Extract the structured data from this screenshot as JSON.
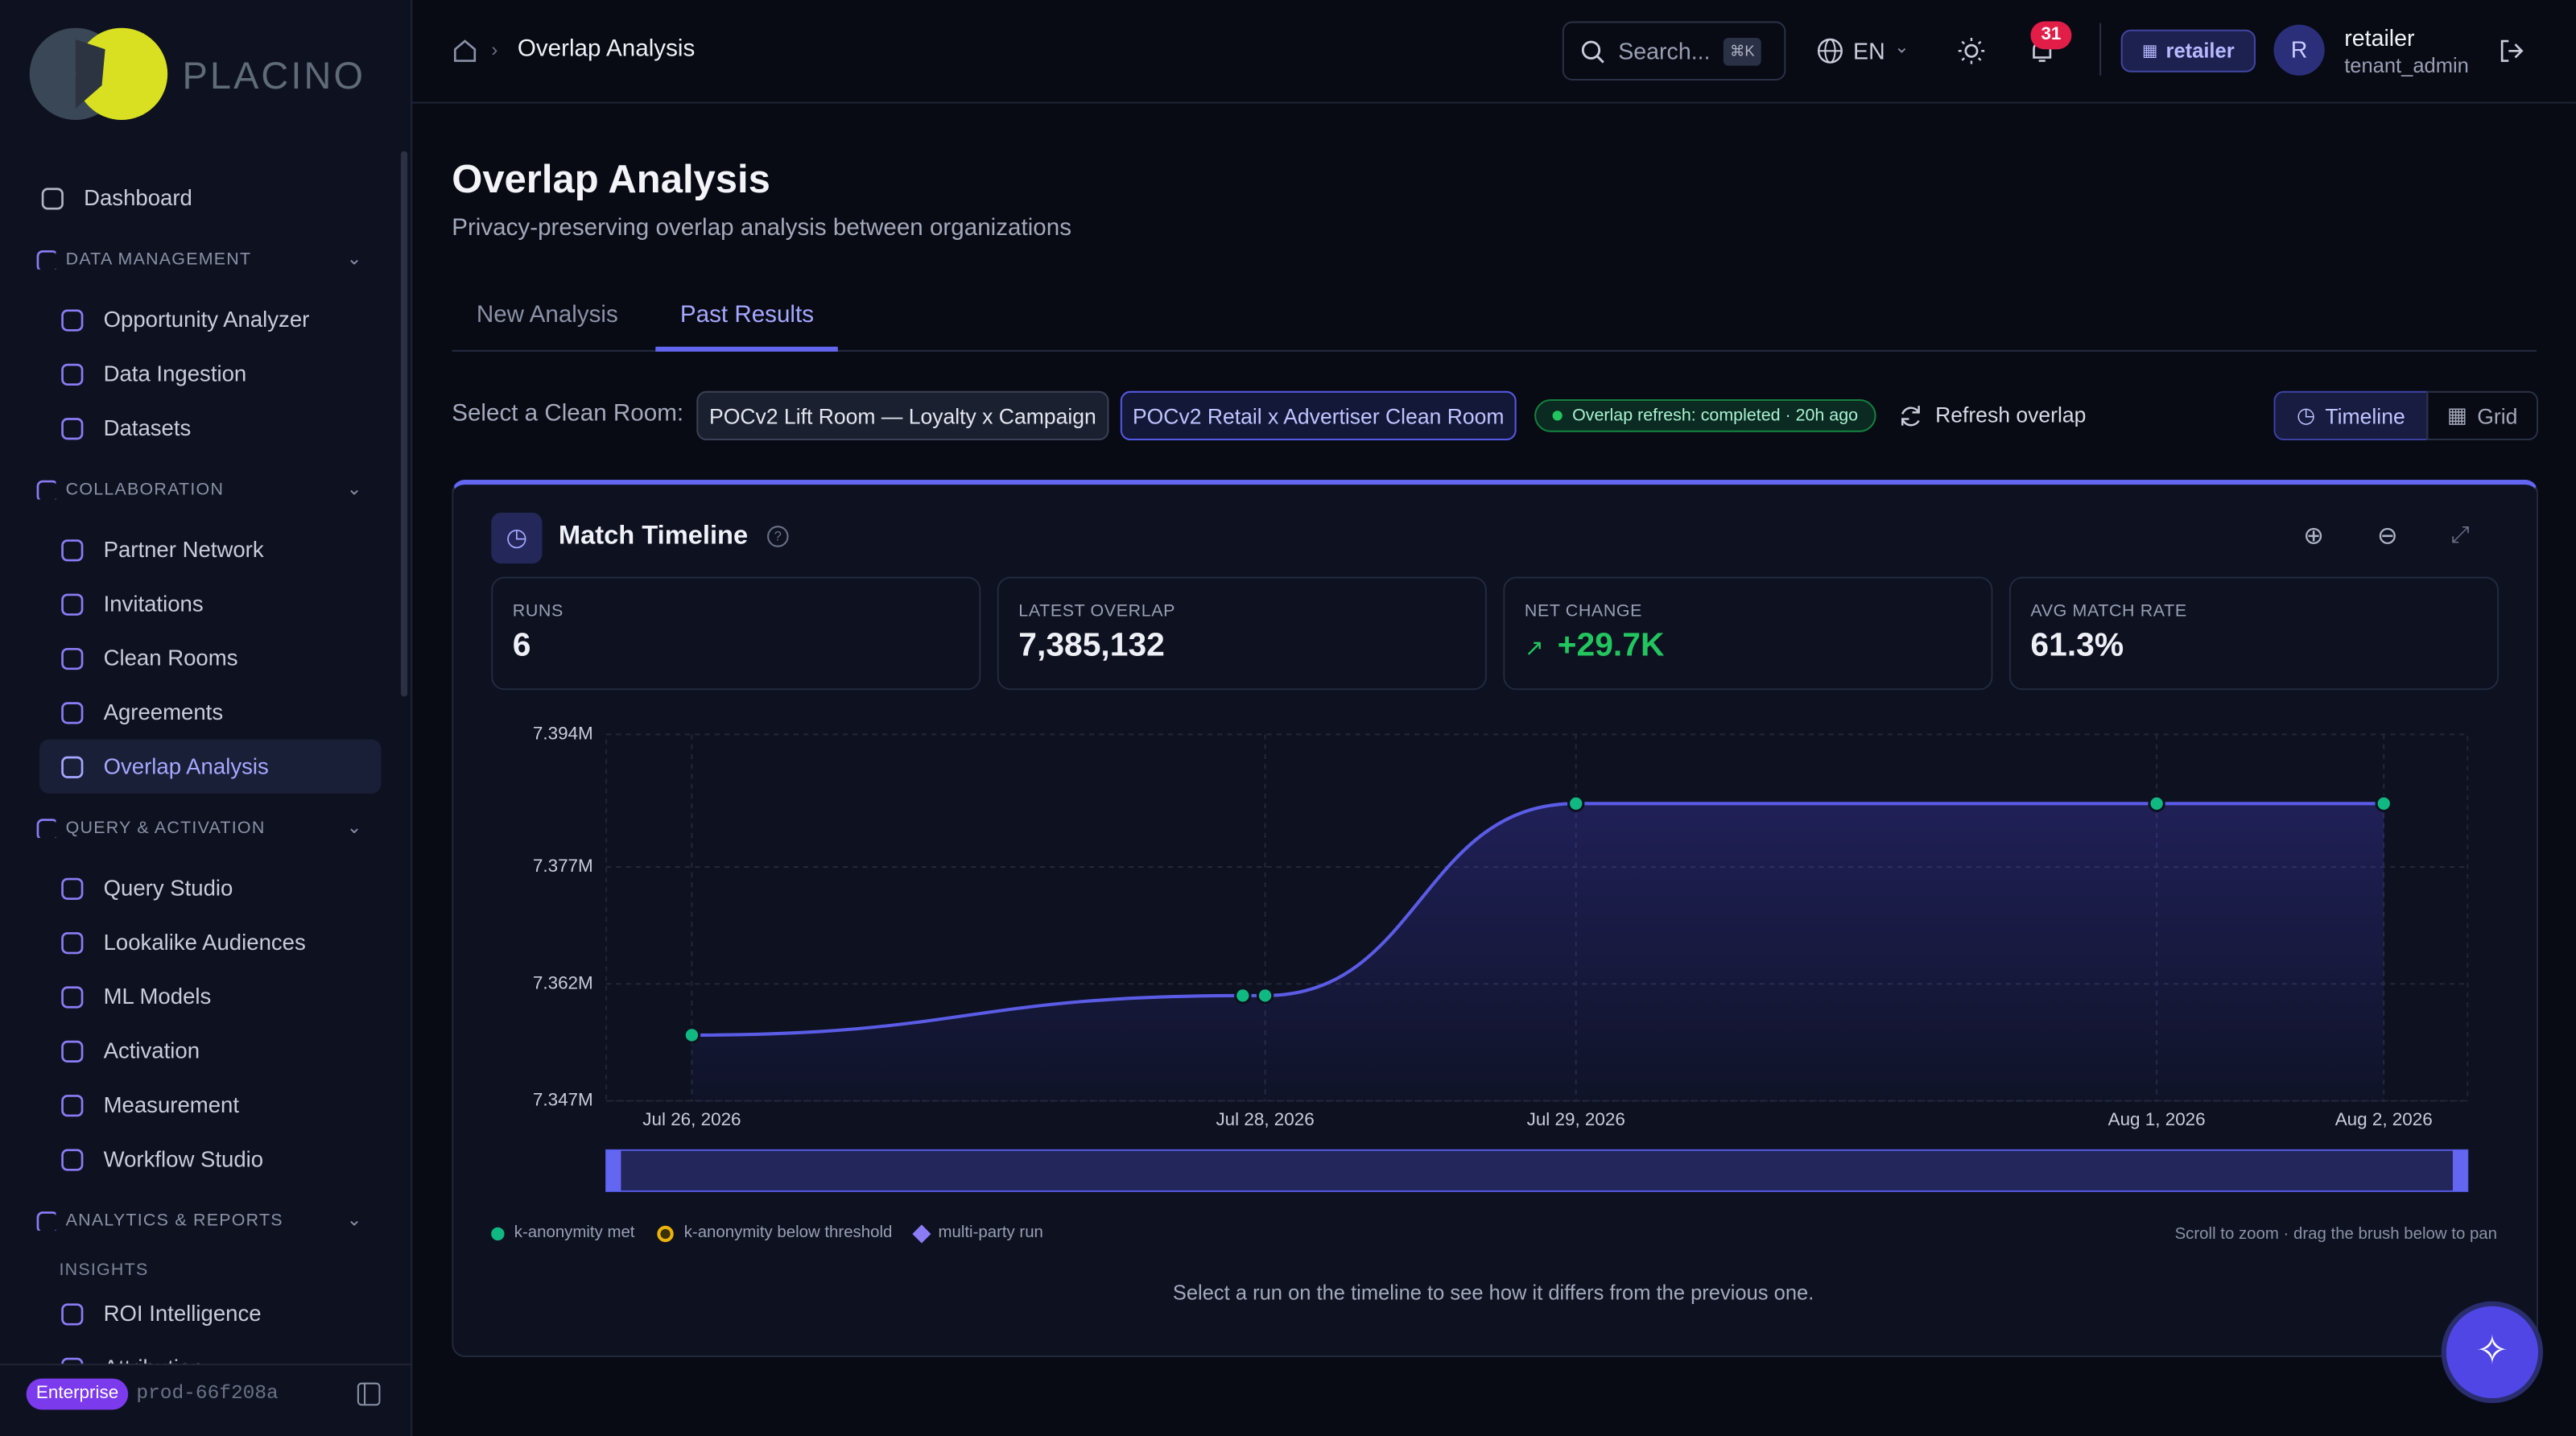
{
  "sidebar": {
    "logo": "PLACINO",
    "dashboard": "Dashboard",
    "sections": [
      {
        "title": "DATA MANAGEMENT",
        "items": [
          "Opportunity Analyzer",
          "Data Ingestion",
          "Datasets"
        ]
      },
      {
        "title": "COLLABORATION",
        "items": [
          "Partner Network",
          "Invitations",
          "Clean Rooms",
          "Agreements",
          "Overlap Analysis"
        ]
      },
      {
        "title": "QUERY & ACTIVATION",
        "items": [
          "Query Studio",
          "Lookalike Audiences",
          "ML Models",
          "Activation",
          "Measurement",
          "Workflow Studio"
        ]
      },
      {
        "title": "ANALYTICS & REPORTS",
        "subtitle": "INSIGHTS",
        "items": [
          "ROI Intelligence",
          "Attribution"
        ]
      }
    ],
    "plan": "Enterprise",
    "env": "prod-66f208a"
  },
  "topbar": {
    "breadcrumb": "Overlap Analysis",
    "search": "Search...",
    "shortcut": "⌘K",
    "language": "EN",
    "notifications": "31",
    "tenant": "retailer",
    "avatar": "R",
    "user": "retailer",
    "role": "tenant_admin"
  },
  "page": {
    "title": "Overlap Analysis",
    "subtitle": "Privacy-preserving overlap analysis between organizations",
    "tabs": [
      "New Analysis",
      "Past Results"
    ],
    "room_label": "Select a Clean Room:",
    "rooms": [
      "POCv2 Lift Room — Loyalty x Campaign",
      "POCv2 Retail x Advertiser Clean Room"
    ],
    "status": "Overlap refresh: completed · 20h ago",
    "refresh": "Refresh overlap",
    "views": [
      "Timeline",
      "Grid"
    ]
  },
  "stats": [
    {
      "label": "RUNS",
      "value": "6"
    },
    {
      "label": "LATEST OVERLAP",
      "value": "7,385,132"
    },
    {
      "label": "NET CHANGE",
      "value": "+29.7K"
    },
    {
      "label": "AVG MATCH RATE",
      "value": "61.3%"
    }
  ],
  "chart_data": {
    "type": "line",
    "title": "Match Timeline",
    "categories": [
      "Jul 26, 2026",
      null,
      "Jul 28, 2026",
      "Jul 29, 2026",
      "Aug 1, 2026",
      "Aug 2, 2026"
    ],
    "values": [
      7355432,
      7360500,
      7360500,
      7385132,
      7385132,
      7385132
    ],
    "color": "#5b5ce6",
    "marker_color": "#10b981",
    "ylim": [
      7347000,
      7394000
    ],
    "yticks": [
      {
        "value": 7347000,
        "label": "7.347M"
      },
      {
        "value": 7362000,
        "label": "7.362M"
      },
      {
        "value": 7377000,
        "label": "7.377M"
      },
      {
        "value": 7394000,
        "label": "7.394M"
      }
    ],
    "grid": true
  },
  "legend_items": [
    "k-anonymity met",
    "k-anonymity below threshold",
    "multi-party run"
  ],
  "hint": "Scroll to zoom · drag the brush below to pan",
  "footer_note": "Select a run on the timeline to see how it differs from the previous one."
}
